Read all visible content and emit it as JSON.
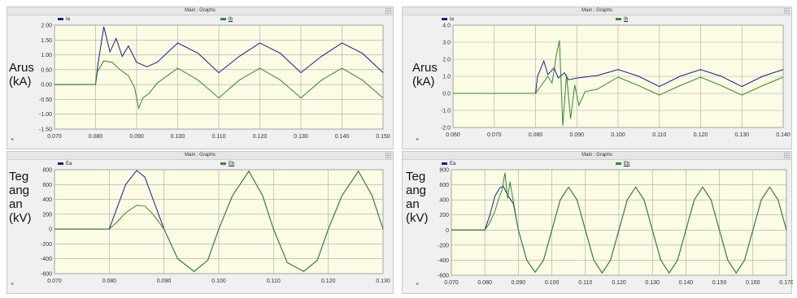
{
  "panels": [
    {
      "title": "Main : Graphs",
      "legend": [
        {
          "name": "Ia",
          "underlined": false
        },
        {
          "name": "Ib",
          "underlined": true
        }
      ],
      "ylabel": "Arus\n(kA)",
      "x_marker": "×"
    },
    {
      "title": "Main : Graphs",
      "legend": [
        {
          "name": "Ia",
          "underlined": false
        },
        {
          "name": "Ib",
          "underlined": true
        }
      ],
      "ylabel": "Arus\n(kA)",
      "x_marker": "×"
    },
    {
      "title": "Main : Graphs",
      "legend": [
        {
          "name": "Ea",
          "underlined": false
        },
        {
          "name": "Eb",
          "underlined": true
        }
      ],
      "ylabel": "Teg\nang\nan\n(kV)",
      "x_marker": "×"
    },
    {
      "title": "Main : Graphs",
      "legend": [
        {
          "name": "Ea",
          "underlined": false
        },
        {
          "name": "Eb",
          "underlined": true
        }
      ],
      "ylabel": "Teg\nang\nan\n(kV)",
      "x_marker": "×"
    }
  ],
  "colors": {
    "series_a": "#1b1b8f",
    "series_b": "#2e8b2e",
    "plot_bg": "#fcfbe4",
    "grid": "#a8a8a8"
  },
  "chart_data": [
    {
      "type": "line",
      "xlim": [
        0.07,
        0.15
      ],
      "ylim": [
        -1.5,
        2.0
      ],
      "xticks": [
        "0.070",
        "0.080",
        "0.090",
        "0.100",
        "0.110",
        "0.120",
        "0.130",
        "0.140",
        "0.150"
      ],
      "yticks": [
        "2.00",
        "1.50",
        "1.00",
        "0.50",
        "0.00",
        "-0.50",
        "-1.00",
        "-1.50"
      ],
      "grid": true,
      "series": [
        {
          "name": "Ia",
          "x": [
            0.07,
            0.08,
            0.0805,
            0.082,
            0.0835,
            0.085,
            0.0865,
            0.088,
            0.09,
            0.0925,
            0.095,
            0.1,
            0.105,
            0.11,
            0.115,
            0.12,
            0.125,
            0.13,
            0.135,
            0.14,
            0.145,
            0.15
          ],
          "y": [
            0.0,
            0.0,
            0.6,
            1.95,
            1.1,
            1.55,
            0.95,
            1.3,
            0.75,
            0.6,
            0.75,
            1.4,
            1.05,
            0.4,
            0.95,
            1.4,
            1.05,
            0.4,
            0.95,
            1.4,
            1.05,
            0.4
          ]
        },
        {
          "name": "Ib",
          "x": [
            0.07,
            0.08,
            0.0805,
            0.082,
            0.084,
            0.086,
            0.088,
            0.0895,
            0.0905,
            0.0915,
            0.093,
            0.095,
            0.1,
            0.105,
            0.11,
            0.115,
            0.12,
            0.125,
            0.13,
            0.135,
            0.14,
            0.145,
            0.15
          ],
          "y": [
            0.0,
            0.0,
            0.45,
            0.8,
            0.75,
            0.5,
            0.3,
            -0.1,
            -0.8,
            -0.45,
            -0.3,
            0.05,
            0.55,
            0.15,
            -0.45,
            0.15,
            0.55,
            0.15,
            -0.45,
            0.15,
            0.55,
            0.15,
            -0.45
          ]
        }
      ]
    },
    {
      "type": "line",
      "xlim": [
        0.06,
        0.14
      ],
      "ylim": [
        -2.0,
        4.0
      ],
      "xticks": [
        "0.060",
        "0.070",
        "0.080",
        "0.090",
        "0.100",
        "0.110",
        "0.120",
        "0.130",
        "0.140"
      ],
      "yticks": [
        "4.0",
        "3.0",
        "2.0",
        "1.0",
        "0.0",
        "-1.0",
        "-2.0"
      ],
      "grid": true,
      "series": [
        {
          "name": "Ia",
          "x": [
            0.06,
            0.08,
            0.0805,
            0.082,
            0.083,
            0.0845,
            0.0855,
            0.087,
            0.088,
            0.09,
            0.095,
            0.1,
            0.105,
            0.11,
            0.115,
            0.12,
            0.125,
            0.13,
            0.135,
            0.14
          ],
          "y": [
            0.0,
            0.0,
            1.0,
            1.9,
            1.1,
            1.5,
            0.9,
            1.2,
            0.8,
            0.9,
            1.05,
            1.4,
            1.0,
            0.4,
            1.0,
            1.4,
            1.0,
            0.4,
            1.0,
            1.4
          ]
        },
        {
          "name": "Ib",
          "x": [
            0.06,
            0.08,
            0.0815,
            0.083,
            0.084,
            0.085,
            0.0858,
            0.0866,
            0.0875,
            0.0885,
            0.0895,
            0.0905,
            0.092,
            0.095,
            0.1,
            0.105,
            0.11,
            0.115,
            0.12,
            0.125,
            0.13,
            0.135,
            0.14
          ],
          "y": [
            0.0,
            0.0,
            0.5,
            1.0,
            0.6,
            2.2,
            3.1,
            -1.9,
            1.1,
            -1.5,
            0.5,
            -0.7,
            0.1,
            0.25,
            0.95,
            0.45,
            -0.1,
            0.45,
            0.95,
            0.45,
            -0.1,
            0.45,
            0.95
          ]
        }
      ]
    },
    {
      "type": "line",
      "xlim": [
        0.07,
        0.13
      ],
      "ylim": [
        -600,
        800
      ],
      "xticks": [
        "0.070",
        "0.080",
        "0.090",
        "0.100",
        "0.110",
        "0.120",
        "0.130"
      ],
      "yticks": [
        "800",
        "600",
        "400",
        "200",
        "0",
        "-200",
        "-400",
        "-600"
      ],
      "grid": true,
      "series": [
        {
          "name": "Ea",
          "x": [
            0.07,
            0.08,
            0.0815,
            0.083,
            0.085,
            0.0865,
            0.088,
            0.09,
            0.0925,
            0.0955,
            0.098,
            0.1,
            0.1025,
            0.1055,
            0.108,
            0.11,
            0.1125,
            0.1155,
            0.118,
            0.12,
            0.1225,
            0.1255,
            0.128,
            0.13
          ],
          "y": [
            0.0,
            0.0,
            300,
            600,
            790,
            700,
            400,
            0,
            -400,
            -570,
            -420,
            0,
            450,
            780,
            450,
            0,
            -450,
            -570,
            -420,
            0,
            450,
            780,
            450,
            0
          ]
        },
        {
          "name": "Eb",
          "x": [
            0.07,
            0.08,
            0.0815,
            0.083,
            0.085,
            0.0865,
            0.088,
            0.09,
            0.0925,
            0.0955,
            0.098,
            0.1,
            0.1025,
            0.1055,
            0.108,
            0.11,
            0.1125,
            0.1155,
            0.118,
            0.12,
            0.1225,
            0.1255,
            0.128,
            0.13
          ],
          "y": [
            0.0,
            0.0,
            100,
            220,
            320,
            310,
            200,
            0,
            -400,
            -570,
            -420,
            0,
            450,
            780,
            450,
            0,
            -450,
            -570,
            -420,
            0,
            450,
            780,
            450,
            0
          ]
        }
      ]
    },
    {
      "type": "line",
      "xlim": [
        0.07,
        0.17
      ],
      "ylim": [
        -600,
        800
      ],
      "xticks": [
        "0.070",
        "0.080",
        "0.090",
        "0.100",
        "0.110",
        "0.120",
        "0.130",
        "0.140",
        "0.150",
        "0.160",
        "0.170"
      ],
      "yticks": [
        "800",
        "600",
        "400",
        "200",
        "0",
        "-200",
        "-400",
        "-600"
      ],
      "grid": true,
      "series": [
        {
          "name": "Ea",
          "x": [
            0.07,
            0.08,
            0.0815,
            0.083,
            0.0845,
            0.0855,
            0.087,
            0.0885,
            0.09,
            0.0925,
            0.095,
            0.0975,
            0.1,
            0.1025,
            0.105,
            0.1075,
            0.11,
            0.1125,
            0.115,
            0.1175,
            0.12,
            0.1225,
            0.125,
            0.1275,
            0.13,
            0.1325,
            0.135,
            0.1375,
            0.14,
            0.1425,
            0.145,
            0.1475,
            0.15,
            0.1525,
            0.155,
            0.1575,
            0.16,
            0.1625,
            0.165,
            0.1675,
            0.17
          ],
          "y": [
            0.0,
            0.0,
            200,
            450,
            560,
            580,
            450,
            350,
            0,
            -400,
            -560,
            -400,
            0,
            400,
            570,
            400,
            0,
            -400,
            -570,
            -400,
            0,
            400,
            570,
            400,
            0,
            -400,
            -570,
            -400,
            0,
            400,
            570,
            400,
            0,
            -400,
            -570,
            -400,
            0,
            400,
            570,
            400,
            0
          ]
        },
        {
          "name": "Eb",
          "x": [
            0.07,
            0.08,
            0.0815,
            0.083,
            0.084,
            0.0852,
            0.086,
            0.0868,
            0.0875,
            0.0885,
            0.09,
            0.0925,
            0.095,
            0.0975,
            0.1,
            0.1025,
            0.105,
            0.1075,
            0.11,
            0.1125,
            0.115,
            0.1175,
            0.12,
            0.1225,
            0.125,
            0.1275,
            0.13,
            0.1325,
            0.135,
            0.1375,
            0.14,
            0.1425,
            0.145,
            0.1475,
            0.15,
            0.1525,
            0.155,
            0.1575,
            0.16,
            0.1625,
            0.165,
            0.1675,
            0.17
          ],
          "y": [
            0.0,
            0.0,
            100,
            250,
            400,
            540,
            760,
            420,
            640,
            380,
            0,
            -400,
            -560,
            -400,
            0,
            400,
            570,
            400,
            0,
            -400,
            -570,
            -400,
            0,
            400,
            570,
            400,
            0,
            -400,
            -570,
            -400,
            0,
            400,
            570,
            400,
            0,
            -400,
            -570,
            -400,
            0,
            400,
            570,
            400,
            0
          ]
        }
      ]
    }
  ]
}
